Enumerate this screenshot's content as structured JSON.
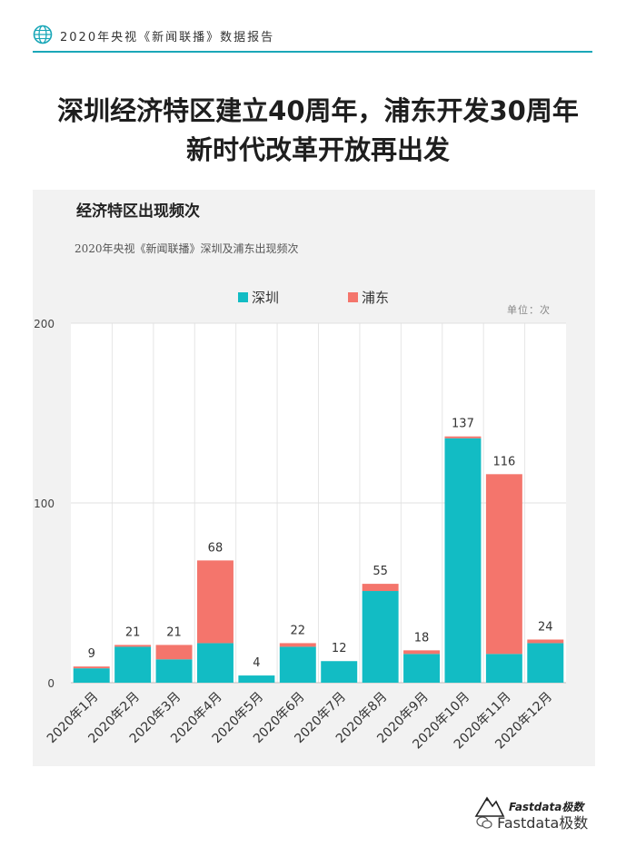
{
  "header": {
    "report_label": "2020年央视《新闻联播》数据报告",
    "accent_color": "#1aa7b8"
  },
  "title": {
    "line1": "深圳经济特区建立40周年，浦东开发30周年",
    "line2": "新时代改革开放再出发"
  },
  "panel": {
    "heading": "经济特区出现频次",
    "subtitle": "2020年央视《新闻联播》深圳及浦东出现频次",
    "unit": "单位：次"
  },
  "chart_data": {
    "type": "bar",
    "stacked": true,
    "title": "经济特区出现频次",
    "subtitle": "2020年央视《新闻联播》深圳及浦东出现频次",
    "unit": "单位：次",
    "categories": [
      "2020年1月",
      "2020年2月",
      "2020年3月",
      "2020年4月",
      "2020年5月",
      "2020年6月",
      "2020年7月",
      "2020年8月",
      "2020年9月",
      "2020年10月",
      "2020年11月",
      "2020年12月"
    ],
    "series": [
      {
        "name": "深圳",
        "color": "#12bcc4",
        "values": [
          8,
          20,
          13,
          22,
          4,
          20,
          12,
          51,
          16,
          136,
          16,
          22
        ]
      },
      {
        "name": "浦东",
        "color": "#f4756c",
        "values": [
          1,
          1,
          8,
          46,
          0,
          2,
          0,
          4,
          2,
          1,
          100,
          2
        ]
      }
    ],
    "totals": [
      9,
      21,
      21,
      68,
      4,
      22,
      12,
      55,
      18,
      137,
      116,
      24
    ],
    "yticks": [
      0,
      100,
      200
    ],
    "ylim": [
      0,
      200
    ],
    "grid": true,
    "legend": "top-center"
  },
  "footer": {
    "brand_name": "Fastdata极数",
    "wechat_label": "Fastdata极数"
  }
}
